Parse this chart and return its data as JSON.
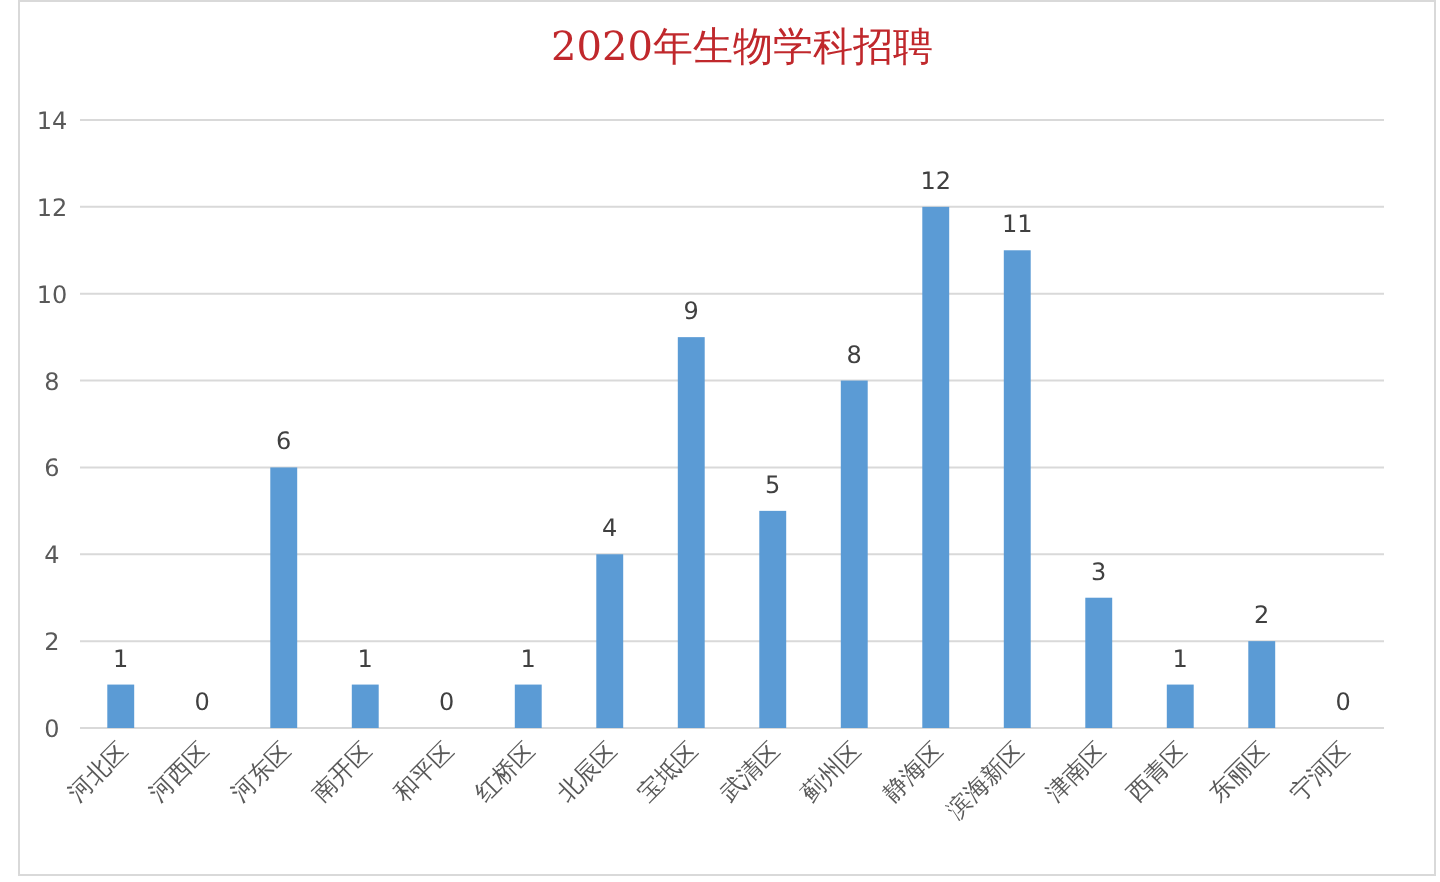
{
  "chart_data": {
    "type": "bar",
    "title": "2020年生物学科招聘",
    "categories": [
      "河北区",
      "河西区",
      "河东区",
      "南开区",
      "和平区",
      "红桥区",
      "北辰区",
      "宝坻区",
      "武清区",
      "蓟州区",
      "静海区",
      "滨海新区",
      "津南区",
      "西青区",
      "东丽区",
      "宁河区"
    ],
    "values": [
      1,
      0,
      6,
      1,
      0,
      1,
      4,
      9,
      5,
      8,
      12,
      11,
      3,
      1,
      2,
      0
    ],
    "color": "#5b9bd5",
    "ylim": [
      0,
      14
    ],
    "yticks": [
      0,
      2,
      4,
      6,
      8,
      10,
      12,
      14
    ],
    "grid": "y",
    "data_labels": true
  }
}
